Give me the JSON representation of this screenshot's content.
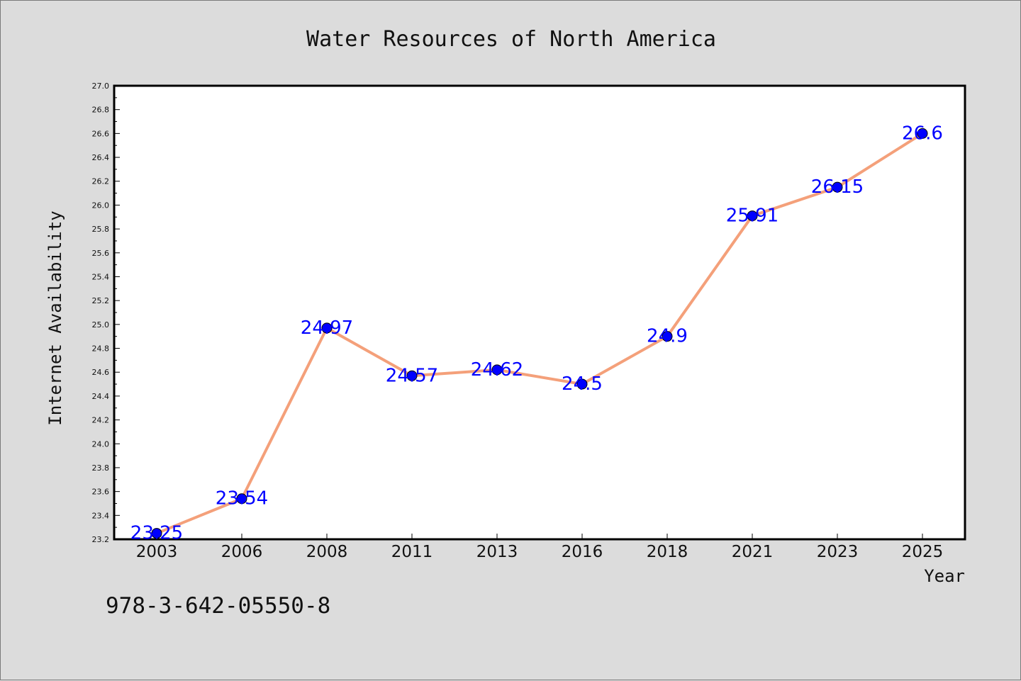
{
  "chart_data": {
    "type": "line",
    "title": "Water Resources of North America",
    "xlabel": "Year",
    "ylabel": "Internet Availability",
    "categories": [
      "2003",
      "2006",
      "2008",
      "2011",
      "2013",
      "2016",
      "2018",
      "2021",
      "2023",
      "2025"
    ],
    "series": [
      {
        "values": [
          23.25,
          23.54,
          24.97,
          24.57,
          24.62,
          24.5,
          24.9,
          25.91,
          26.15,
          26.6
        ],
        "data_labels": [
          "23.25",
          "23.54",
          "24.97",
          "24.57",
          "24.62",
          "24.5",
          "24.9",
          "25.91",
          "26.15",
          "26.6"
        ],
        "line_color": "#f4a07a",
        "marker_color": "#0000ff"
      }
    ],
    "ylim": [
      23.2,
      27.0
    ],
    "yticks": [
      "23.2",
      "23.4",
      "23.6",
      "23.8",
      "24.0",
      "24.2",
      "24.4",
      "24.6",
      "24.8",
      "25.0",
      "25.2",
      "25.4",
      "25.6",
      "25.8",
      "26.0",
      "26.2",
      "26.4",
      "26.6",
      "26.8",
      "27.0"
    ],
    "grid": false,
    "legend": "none"
  },
  "footer": {
    "isbn": "978-3-642-05550-8"
  }
}
